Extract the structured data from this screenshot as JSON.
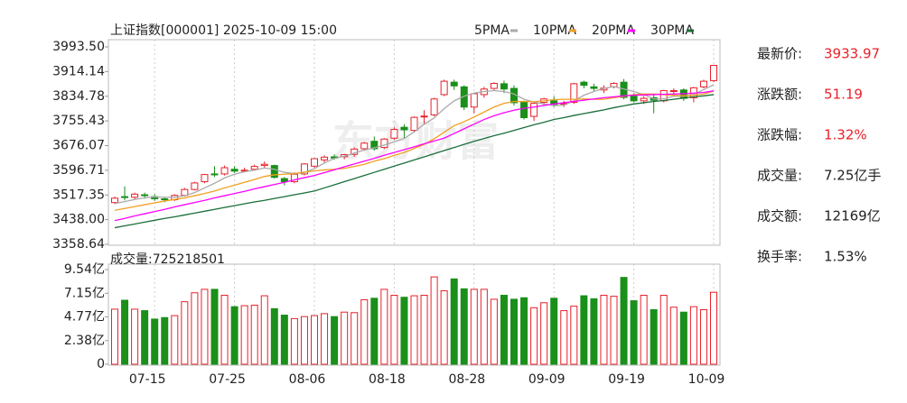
{
  "chart_data": {
    "type": "candlestick",
    "title": "上证指数[000001] 2025-10-09 15:00",
    "watermark": "东方财富",
    "categories": [
      null,
      null,
      null,
      null,
      "07-15",
      null,
      null,
      null,
      null,
      null,
      null,
      null,
      "07-25",
      null,
      null,
      null,
      null,
      null,
      null,
      null,
      "08-06",
      null,
      null,
      null,
      null,
      null,
      null,
      null,
      "08-18",
      null,
      null,
      null,
      null,
      null,
      null,
      null,
      "08-28",
      null,
      null,
      null,
      null,
      null,
      null,
      null,
      "09-09",
      null,
      null,
      null,
      null,
      null,
      null,
      null,
      "09-19",
      null,
      null,
      null,
      null,
      null,
      null,
      null,
      "10-09"
    ],
    "open": [
      3493,
      3512,
      3510,
      3518,
      3512,
      3505,
      3502,
      3516,
      3535,
      3560,
      3585,
      3585,
      3600,
      3595,
      3600,
      3612,
      3612,
      3570,
      3560,
      3585,
      3610,
      3630,
      3640,
      3640,
      3648,
      3666,
      3690,
      3670,
      3700,
      3735,
      3725,
      3770,
      3775,
      3840,
      3880,
      3865,
      3800,
      3840,
      3860,
      3875,
      3860,
      3815,
      3770,
      3815,
      3820,
      3810,
      3815,
      3880,
      3865,
      3855,
      3865,
      3880,
      3835,
      3820,
      3830,
      3820,
      3850,
      3855,
      3830,
      3865,
      3885
    ],
    "high": [
      3512,
      3545,
      3525,
      3525,
      3520,
      3510,
      3520,
      3540,
      3560,
      3585,
      3610,
      3612,
      3610,
      3605,
      3615,
      3625,
      3615,
      3575,
      3590,
      3620,
      3636,
      3645,
      3648,
      3650,
      3670,
      3688,
      3705,
      3700,
      3735,
      3745,
      3770,
      3790,
      3830,
      3888,
      3888,
      3870,
      3845,
      3865,
      3880,
      3885,
      3870,
      3820,
      3815,
      3830,
      3835,
      3820,
      3878,
      3885,
      3875,
      3870,
      3880,
      3890,
      3845,
      3835,
      3840,
      3855,
      3860,
      3860,
      3865,
      3888,
      3936
    ],
    "low": [
      3488,
      3500,
      3502,
      3505,
      3498,
      3494,
      3498,
      3512,
      3532,
      3555,
      3575,
      3580,
      3588,
      3590,
      3595,
      3602,
      3570,
      3548,
      3555,
      3580,
      3605,
      3620,
      3630,
      3632,
      3640,
      3660,
      3660,
      3665,
      3695,
      3700,
      3720,
      3745,
      3770,
      3835,
      3855,
      3790,
      3780,
      3830,
      3855,
      3845,
      3805,
      3760,
      3755,
      3805,
      3800,
      3800,
      3810,
      3860,
      3850,
      3845,
      3860,
      3825,
      3815,
      3810,
      3780,
      3815,
      3840,
      3820,
      3815,
      3860,
      3880
    ],
    "close": [
      3507,
      3509,
      3520,
      3515,
      3505,
      3503,
      3516,
      3535,
      3556,
      3583,
      3582,
      3605,
      3594,
      3597,
      3609,
      3616,
      3574,
      3560,
      3584,
      3617,
      3634,
      3639,
      3636,
      3647,
      3665,
      3684,
      3666,
      3697,
      3728,
      3727,
      3767,
      3771,
      3826,
      3883,
      3868,
      3800,
      3843,
      3858,
      3876,
      3858,
      3814,
      3766,
      3812,
      3826,
      3807,
      3812,
      3875,
      3870,
      3860,
      3861,
      3876,
      3831,
      3820,
      3828,
      3822,
      3853,
      3853,
      3828,
      3862,
      3883,
      3934
    ],
    "up_color": "#e8202a",
    "down_color": "#1a8f1a",
    "grid": true,
    "ylim": [
      3358.64,
      3993.5
    ],
    "yticks": [
      {
        "value": 3993.5,
        "label": "3993.50"
      },
      3914.14,
      3834.78,
      3755.43,
      3676.07,
      3596.71,
      3517.35,
      {
        "value": 3438,
        "label": "3438.00"
      },
      3358.64
    ],
    "series": [
      {
        "name": "5PMA",
        "color": "#aaaaaa",
        "values": [
          3490,
          3496,
          3503,
          3508,
          3511,
          3510,
          3510,
          3515,
          3525,
          3540,
          3555,
          3572,
          3584,
          3592,
          3597,
          3604,
          3600,
          3590,
          3586,
          3590,
          3602,
          3620,
          3635,
          3642,
          3652,
          3662,
          3669,
          3678,
          3688,
          3699,
          3720,
          3745,
          3765,
          3795,
          3820,
          3835,
          3845,
          3850,
          3853,
          3850,
          3842,
          3825,
          3816,
          3810,
          3805,
          3806,
          3820,
          3838,
          3850,
          3860,
          3866,
          3858,
          3850,
          3840,
          3826,
          3826,
          3835,
          3835,
          3841,
          3856,
          3872
        ]
      },
      {
        "name": "10PMA",
        "color": "#f0a020",
        "values": [
          3468,
          3474,
          3480,
          3486,
          3492,
          3498,
          3503,
          3508,
          3515,
          3522,
          3530,
          3540,
          3549,
          3558,
          3567,
          3577,
          3582,
          3584,
          3586,
          3591,
          3595,
          3598,
          3600,
          3603,
          3609,
          3616,
          3626,
          3634,
          3645,
          3654,
          3667,
          3680,
          3698,
          3719,
          3740,
          3753,
          3768,
          3784,
          3800,
          3812,
          3818,
          3818,
          3817,
          3820,
          3824,
          3825,
          3825,
          3826,
          3825,
          3825,
          3830,
          3835,
          3840,
          3842,
          3842,
          3840,
          3838,
          3836,
          3838,
          3842,
          3851
        ]
      },
      {
        "name": "20PMA",
        "color": "#ff00ff",
        "values": [
          3435,
          3442,
          3450,
          3457,
          3464,
          3471,
          3479,
          3486,
          3493,
          3500,
          3508,
          3515,
          3522,
          3529,
          3537,
          3544,
          3551,
          3558,
          3566,
          3573,
          3580,
          3589,
          3598,
          3608,
          3617,
          3626,
          3635,
          3645,
          3654,
          3663,
          3672,
          3682,
          3691,
          3700,
          3715,
          3730,
          3745,
          3760,
          3772,
          3782,
          3790,
          3796,
          3800,
          3805,
          3810,
          3814,
          3818,
          3822,
          3826,
          3830,
          3833,
          3836,
          3838,
          3839,
          3840,
          3841,
          3842,
          3843,
          3845,
          3847,
          3852
        ]
      },
      {
        "name": "30PMA",
        "color": "#1a6e3a",
        "values": [
          3412,
          3418,
          3424,
          3430,
          3436,
          3442,
          3447,
          3453,
          3459,
          3465,
          3471,
          3477,
          3483,
          3489,
          3495,
          3500,
          3506,
          3512,
          3518,
          3524,
          3530,
          3540,
          3550,
          3560,
          3570,
          3580,
          3590,
          3600,
          3610,
          3620,
          3630,
          3640,
          3650,
          3660,
          3670,
          3680,
          3690,
          3699,
          3708,
          3716,
          3725,
          3734,
          3743,
          3751,
          3760,
          3766,
          3773,
          3779,
          3785,
          3791,
          3798,
          3804,
          3810,
          3814,
          3818,
          3821,
          3825,
          3829,
          3833,
          3836,
          3840
        ]
      }
    ],
    "volume": {
      "label": "成交量:",
      "total": 725218501,
      "values": [
        5.55,
        6.45,
        5.55,
        5.4,
        4.55,
        4.7,
        4.9,
        6.3,
        7.2,
        7.55,
        7.55,
        6.95,
        5.8,
        5.9,
        5.95,
        6.9,
        5.6,
        4.95,
        4.6,
        4.8,
        4.9,
        5.1,
        4.8,
        5.25,
        5.2,
        6.5,
        6.65,
        7.55,
        6.95,
        6.75,
        6.9,
        6.95,
        8.8,
        7.4,
        8.6,
        7.6,
        7.55,
        7.55,
        6.55,
        6.95,
        6.55,
        6.7,
        5.7,
        6.2,
        6.65,
        5.4,
        5.85,
        6.9,
        6.6,
        6.95,
        6.85,
        8.75,
        6.4,
        6.95,
        5.5,
        6.95,
        5.75,
        5.25,
        5.8,
        5.5,
        7.25
      ],
      "ylim": [
        0,
        9.54
      ],
      "yticks": [
        {
          "value": 9.54,
          "label": "9.54亿"
        },
        {
          "value": 7.15,
          "label": "7.15亿"
        },
        {
          "value": 4.77,
          "label": "4.77亿"
        },
        {
          "value": 2.38,
          "label": "2.38亿"
        },
        0
      ]
    }
  },
  "quote": [
    {
      "label": "最新价:",
      "value": 3933.97
    },
    {
      "label": "涨跌额:",
      "value": 51.19
    },
    {
      "label": "涨跌幅:",
      "value": "1.32%"
    },
    {
      "label": "成交量:",
      "value": "7.25亿手"
    },
    {
      "label": "成交额:",
      "value": "12169亿"
    },
    {
      "label": "换手率:",
      "value": "1.53%"
    }
  ]
}
